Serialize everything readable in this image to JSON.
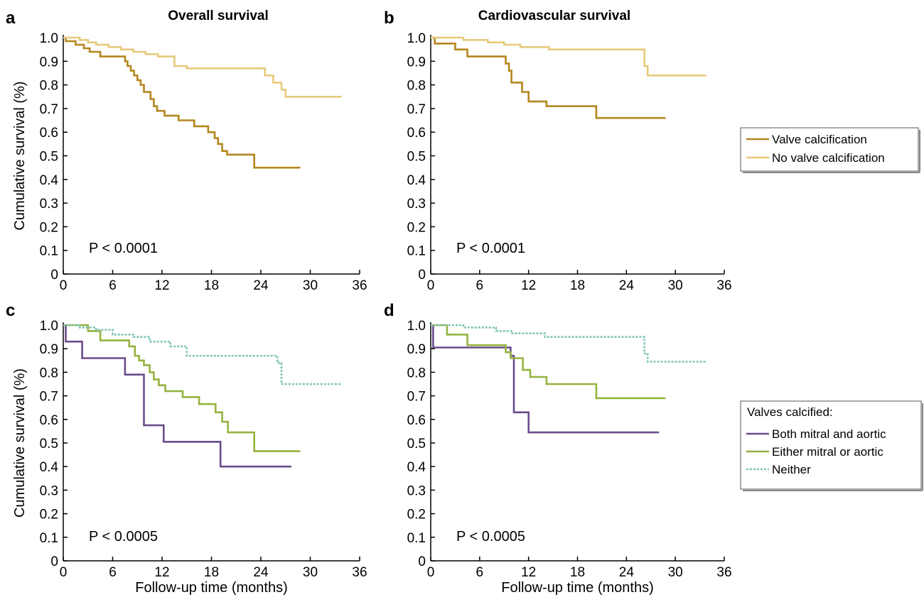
{
  "chart_data": [
    {
      "panel": "a",
      "type": "line",
      "title": "Overall survival",
      "xlabel": "",
      "ylabel": "Cumulative survival (%)",
      "xlim": [
        0,
        36
      ],
      "ylim": [
        0,
        1.0
      ],
      "xticks": [
        "0",
        "6",
        "12",
        "18",
        "24",
        "30",
        "36"
      ],
      "yticks": [
        "0",
        "0.1",
        "0.2",
        "0.3",
        "0.4",
        "0.5",
        "0.6",
        "0.7",
        "0.8",
        "0.9",
        "1.0"
      ],
      "annotation": "P < 0.0001",
      "series": [
        {
          "name": "Valve calcification",
          "color": "#B5861E",
          "dash": false,
          "x": [
            0,
            0.3,
            1.5,
            2.5,
            3.2,
            4.5,
            7.5,
            7.8,
            8.2,
            8.6,
            9.0,
            9.4,
            9.8,
            10.6,
            11.0,
            11.4,
            12.3,
            14.0,
            15.9,
            17.6,
            18.4,
            18.8,
            19.3,
            19.9,
            23.2,
            28.8
          ],
          "y": [
            1.0,
            0.985,
            0.97,
            0.955,
            0.94,
            0.92,
            0.9,
            0.88,
            0.86,
            0.84,
            0.82,
            0.8,
            0.77,
            0.74,
            0.71,
            0.69,
            0.67,
            0.65,
            0.625,
            0.6,
            0.575,
            0.55,
            0.52,
            0.505,
            0.45,
            0.45
          ]
        },
        {
          "name": "No valve calcification",
          "color": "#E6C97A",
          "dash": false,
          "x": [
            0,
            2.0,
            3.0,
            4.0,
            5.5,
            7.0,
            8.5,
            10.0,
            11.5,
            13.5,
            15.0,
            24.5,
            25.5,
            26.5,
            27.0,
            33.8
          ],
          "y": [
            1.0,
            0.99,
            0.98,
            0.97,
            0.96,
            0.95,
            0.94,
            0.93,
            0.92,
            0.88,
            0.87,
            0.84,
            0.81,
            0.78,
            0.75,
            0.75
          ]
        }
      ]
    },
    {
      "panel": "b",
      "type": "line",
      "title": "Cardiovascular survival",
      "xlabel": "",
      "ylabel": "",
      "xlim": [
        0,
        36
      ],
      "ylim": [
        0,
        1.0
      ],
      "xticks": [
        "0",
        "6",
        "12",
        "18",
        "24",
        "30",
        "36"
      ],
      "yticks": [
        "0",
        "0.1",
        "0.2",
        "0.3",
        "0.4",
        "0.5",
        "0.6",
        "0.7",
        "0.8",
        "0.9",
        "1.0"
      ],
      "annotation": "P < 0.0001",
      "series": [
        {
          "name": "Valve calcification",
          "color": "#B5861E",
          "dash": false,
          "x": [
            0,
            0.5,
            3.0,
            4.5,
            9.2,
            9.6,
            9.9,
            10.2,
            11.2,
            12.0,
            14.2,
            20.3,
            28.8
          ],
          "y": [
            1.0,
            0.975,
            0.95,
            0.92,
            0.89,
            0.86,
            0.81,
            0.81,
            0.77,
            0.73,
            0.71,
            0.66,
            0.66
          ]
        },
        {
          "name": "No valve calcification",
          "color": "#E6C97A",
          "dash": false,
          "x": [
            0,
            4.0,
            7.0,
            9.0,
            11.0,
            14.5,
            26.2,
            26.6,
            33.8
          ],
          "y": [
            1.0,
            0.99,
            0.98,
            0.97,
            0.96,
            0.95,
            0.88,
            0.84,
            0.84
          ]
        }
      ]
    },
    {
      "panel": "c",
      "type": "line",
      "title": "",
      "xlabel": "Follow-up time (months)",
      "ylabel": "Cumulative survival (%)",
      "xlim": [
        0,
        36
      ],
      "ylim": [
        0,
        1.0
      ],
      "xticks": [
        "0",
        "6",
        "12",
        "18",
        "24",
        "30",
        "36"
      ],
      "yticks": [
        "0",
        "0.1",
        "0.2",
        "0.3",
        "0.4",
        "0.5",
        "0.6",
        "0.7",
        "0.8",
        "0.9",
        "1.0"
      ],
      "annotation": "P < 0.0005",
      "series": [
        {
          "name": "Both mitral and aortic",
          "color": "#6B4C8A",
          "dash": false,
          "x": [
            0,
            0.3,
            2.3,
            7.5,
            9.8,
            12.2,
            19.1,
            27.7
          ],
          "y": [
            1.0,
            0.93,
            0.86,
            0.79,
            0.575,
            0.505,
            0.4,
            0.4
          ]
        },
        {
          "name": "Either mitral or aortic",
          "color": "#95B33F",
          "dash": false,
          "x": [
            0,
            3.0,
            4.5,
            8.0,
            8.7,
            9.2,
            9.8,
            10.5,
            11.0,
            11.6,
            12.4,
            14.5,
            16.5,
            18.5,
            19.3,
            20.0,
            23.2,
            28.8
          ],
          "y": [
            1.0,
            0.975,
            0.935,
            0.91,
            0.87,
            0.85,
            0.83,
            0.8,
            0.77,
            0.745,
            0.72,
            0.695,
            0.665,
            0.63,
            0.59,
            0.545,
            0.465,
            0.465
          ]
        },
        {
          "name": "Neither",
          "color": "#7FC4B8",
          "dash": true,
          "x": [
            0,
            2.0,
            4.0,
            6.0,
            8.5,
            10.5,
            13.0,
            15.0,
            24.5,
            26.0,
            26.5,
            33.8
          ],
          "y": [
            1.0,
            0.99,
            0.98,
            0.96,
            0.95,
            0.93,
            0.91,
            0.87,
            0.87,
            0.84,
            0.75,
            0.75
          ]
        }
      ]
    },
    {
      "panel": "d",
      "type": "line",
      "title": "",
      "xlabel": "Follow-up time (months)",
      "ylabel": "",
      "xlim": [
        0,
        36
      ],
      "ylim": [
        0,
        1.0
      ],
      "xticks": [
        "0",
        "6",
        "12",
        "18",
        "24",
        "30",
        "36"
      ],
      "yticks": [
        "0",
        "0.1",
        "0.2",
        "0.3",
        "0.4",
        "0.5",
        "0.6",
        "0.7",
        "0.8",
        "0.9",
        "1.0"
      ],
      "annotation": "P < 0.0005",
      "series": [
        {
          "name": "Both mitral and aortic",
          "color": "#6B4C8A",
          "dash": false,
          "x": [
            0,
            0.3,
            9.8,
            10.2,
            12.0,
            28.0
          ],
          "y": [
            1.0,
            0.905,
            0.87,
            0.63,
            0.545,
            0.545
          ]
        },
        {
          "name": "Either mitral or aortic",
          "color": "#95B33F",
          "dash": false,
          "x": [
            0,
            2.0,
            4.5,
            9.2,
            9.8,
            11.3,
            12.2,
            14.2,
            20.3,
            28.8
          ],
          "y": [
            1.0,
            0.96,
            0.915,
            0.885,
            0.86,
            0.81,
            0.78,
            0.75,
            0.69,
            0.69
          ]
        },
        {
          "name": "Neither",
          "color": "#7FC4B8",
          "dash": true,
          "x": [
            0,
            4.0,
            8.0,
            10.0,
            14.0,
            26.2,
            26.6,
            33.8
          ],
          "y": [
            1.0,
            0.99,
            0.975,
            0.965,
            0.95,
            0.88,
            0.845,
            0.845
          ]
        }
      ]
    }
  ],
  "legends": {
    "top": {
      "title": "",
      "entries": [
        {
          "label": "Valve calcification",
          "color": "#B5861E",
          "dash": false
        },
        {
          "label": "No valve calcification",
          "color": "#E6C97A",
          "dash": false
        }
      ]
    },
    "bottom": {
      "title": "Valves calcified:",
      "entries": [
        {
          "label": "Both mitral and aortic",
          "color": "#6B4C8A",
          "dash": false
        },
        {
          "label": "Either mitral or aortic",
          "color": "#95B33F",
          "dash": false
        },
        {
          "label": "Neither",
          "color": "#7FC4B8",
          "dash": true
        }
      ]
    }
  }
}
